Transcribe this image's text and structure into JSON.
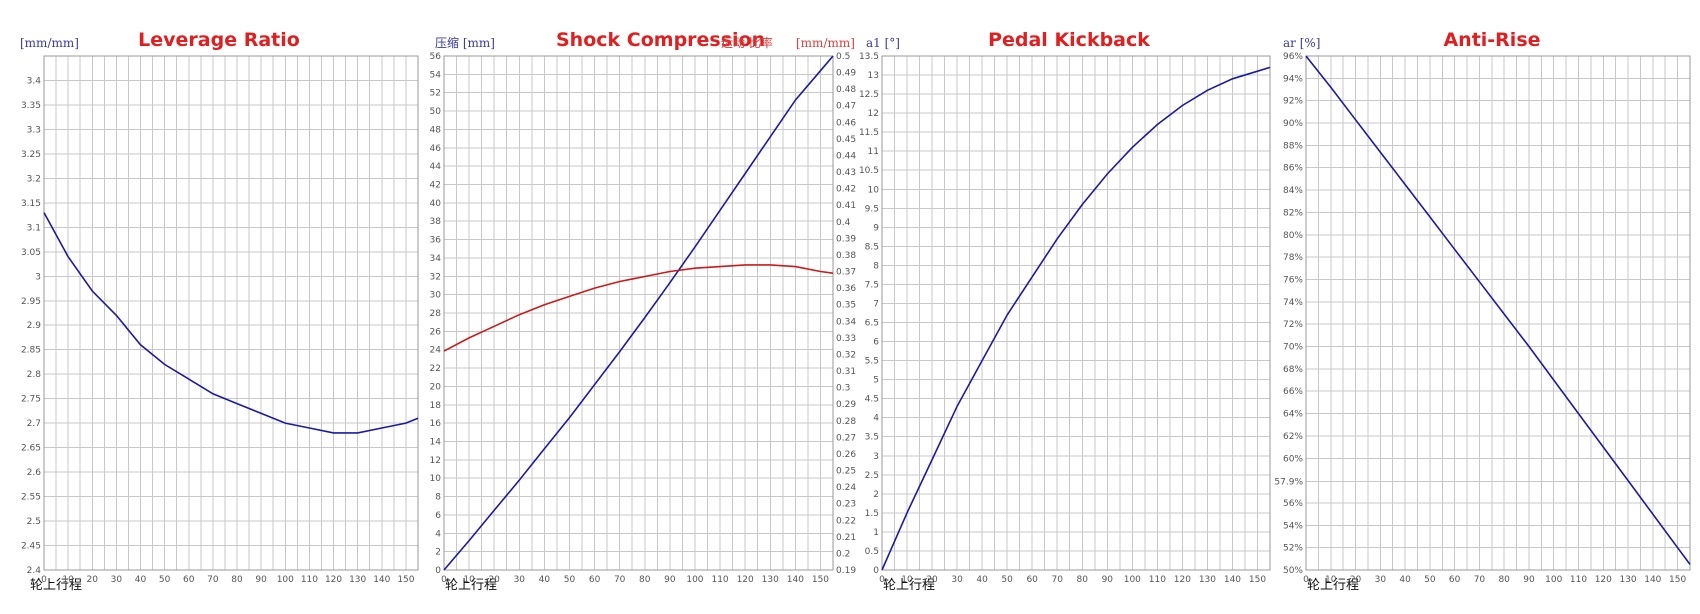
{
  "chart_data": [
    {
      "type": "line",
      "title": "Leverage Ratio",
      "ylabel": "[mm/mm]",
      "xlabel": "轮上行程",
      "xlim": [
        0,
        155
      ],
      "ylim": [
        2.4,
        3.45
      ],
      "x_ticks": [
        "0",
        "10",
        "20",
        "30",
        "40",
        "50",
        "60",
        "70",
        "80",
        "90",
        "100",
        "110",
        "120",
        "130",
        "140",
        "150"
      ],
      "y_ticks": [
        "2.4",
        "2.45",
        "2.5",
        "2.55",
        "2.6",
        "2.65",
        "2.7",
        "2.75",
        "2.8",
        "2.85",
        "2.9",
        "2.95",
        "3",
        "3.05",
        "3.1",
        "3.15",
        "3.2",
        "3.25",
        "3.3",
        "3.35",
        "3.4"
      ],
      "grid": true,
      "series": [
        {
          "color": "#1a1aa6",
          "x": [
            0,
            10,
            20,
            30,
            40,
            50,
            60,
            70,
            80,
            90,
            100,
            110,
            120,
            130,
            140,
            150,
            155
          ],
          "y": [
            3.13,
            3.04,
            2.97,
            2.92,
            2.86,
            2.82,
            2.79,
            2.76,
            2.74,
            2.72,
            2.7,
            2.69,
            2.68,
            2.68,
            2.69,
            2.7,
            2.71
          ]
        }
      ]
    },
    {
      "type": "line",
      "title": "Shock Compression",
      "title_suffix": "运动 比率",
      "ylabel": "压缩 [mm]",
      "y2label": "[mm/mm]",
      "xlabel": "轮上行程",
      "xlim": [
        0,
        155
      ],
      "ylim": [
        0,
        56
      ],
      "y2lim": [
        0.19,
        0.5
      ],
      "x_ticks": [
        "0",
        "10",
        "20",
        "30",
        "40",
        "50",
        "60",
        "70",
        "80",
        "90",
        "100",
        "110",
        "120",
        "130",
        "140",
        "150"
      ],
      "y_ticks": [
        "0",
        "2",
        "4",
        "6",
        "8",
        "10",
        "12",
        "14",
        "16",
        "18",
        "20",
        "22",
        "24",
        "26",
        "28",
        "30",
        "32",
        "34",
        "36",
        "38",
        "40",
        "42",
        "44",
        "46",
        "48",
        "50",
        "52",
        "54",
        "56"
      ],
      "y2_ticks": [
        "0.19",
        "0.2",
        "0.21",
        "0.22",
        "0.23",
        "0.24",
        "0.25",
        "0.26",
        "0.27",
        "0.28",
        "0.29",
        "0.3",
        "0.31",
        "0.32",
        "0.33",
        "0.34",
        "0.35",
        "0.36",
        "0.37",
        "0.38",
        "0.39",
        "0.4",
        "0.41",
        "0.42",
        "0.43",
        "0.44",
        "0.45",
        "0.46",
        "0.47",
        "0.48",
        "0.49",
        "0.5"
      ],
      "grid": true,
      "series": [
        {
          "color": "#1a1aa6",
          "axis": "left",
          "x": [
            0,
            10,
            20,
            30,
            40,
            50,
            60,
            70,
            80,
            90,
            100,
            110,
            120,
            130,
            140,
            150,
            155
          ],
          "y": [
            0,
            3.2,
            6.5,
            9.8,
            13.2,
            16.6,
            20.2,
            23.8,
            27.5,
            31.3,
            35.2,
            39.2,
            43.2,
            47.2,
            51.2,
            54.4,
            56
          ]
        },
        {
          "color": "#cc1a1a",
          "axis": "right",
          "x": [
            0,
            10,
            20,
            30,
            40,
            50,
            60,
            70,
            80,
            90,
            100,
            110,
            120,
            130,
            140,
            150,
            155
          ],
          "y": [
            0.322,
            0.33,
            0.337,
            0.344,
            0.35,
            0.355,
            0.36,
            0.364,
            0.367,
            0.37,
            0.372,
            0.373,
            0.374,
            0.374,
            0.373,
            0.37,
            0.369
          ]
        }
      ]
    },
    {
      "type": "line",
      "title": "Pedal Kickback",
      "ylabel": "a1 [°]",
      "xlabel": "轮上行程",
      "xlim": [
        0,
        155
      ],
      "ylim": [
        0,
        13.5
      ],
      "x_ticks": [
        "0",
        "10",
        "20",
        "30",
        "40",
        "50",
        "60",
        "70",
        "80",
        "90",
        "100",
        "110",
        "120",
        "130",
        "140",
        "150"
      ],
      "y_ticks": [
        "0",
        "0.5",
        "1",
        "1.5",
        "2",
        "2.5",
        "3",
        "3.5",
        "4",
        "4.5",
        "5",
        "5.5",
        "6",
        "6.5",
        "7",
        "7.5",
        "8",
        "8.5",
        "9",
        "9.5",
        "10",
        "10.5",
        "11",
        "11.5",
        "12",
        "12.5",
        "13",
        "13.5"
      ],
      "grid": true,
      "series": [
        {
          "color": "#1a1aa6",
          "x": [
            0,
            10,
            20,
            30,
            40,
            50,
            60,
            70,
            80,
            90,
            100,
            110,
            120,
            130,
            140,
            150,
            155
          ],
          "y": [
            0,
            1.5,
            2.9,
            4.3,
            5.5,
            6.7,
            7.7,
            8.7,
            9.6,
            10.4,
            11.1,
            11.7,
            12.2,
            12.6,
            12.9,
            13.1,
            13.2
          ]
        }
      ]
    },
    {
      "type": "line",
      "title": "Anti-Rise",
      "ylabel": "ar [%]",
      "xlabel": "轮上行程",
      "xlim": [
        0,
        155
      ],
      "ylim": [
        50,
        96
      ],
      "x_ticks": [
        "0",
        "10",
        "20",
        "30",
        "40",
        "50",
        "60",
        "70",
        "80",
        "90",
        "100",
        "110",
        "120",
        "130",
        "140",
        "150"
      ],
      "y_ticks": [
        "50%",
        "52%",
        "54%",
        "56%",
        "57.9%",
        "60%",
        "62%",
        "64%",
        "66%",
        "68%",
        "70%",
        "72%",
        "74%",
        "76%",
        "78%",
        "80%",
        "82%",
        "84%",
        "86%",
        "88%",
        "90%",
        "92%",
        "94%",
        "96%"
      ],
      "y_tick_values": [
        50,
        52,
        54,
        56,
        57.9,
        60,
        62,
        64,
        66,
        68,
        70,
        72,
        74,
        76,
        78,
        80,
        82,
        84,
        86,
        88,
        90,
        92,
        94,
        96
      ],
      "grid": true,
      "series": [
        {
          "color": "#1a1aa6",
          "x": [
            0,
            10,
            20,
            30,
            40,
            50,
            60,
            70,
            80,
            90,
            100,
            110,
            120,
            130,
            140,
            150,
            155
          ],
          "y": [
            96,
            93.2,
            90.3,
            87.4,
            84.5,
            81.6,
            78.7,
            75.8,
            72.9,
            70.0,
            67.0,
            64.0,
            61.0,
            58.0,
            55.0,
            52.0,
            50.5
          ]
        }
      ]
    }
  ]
}
